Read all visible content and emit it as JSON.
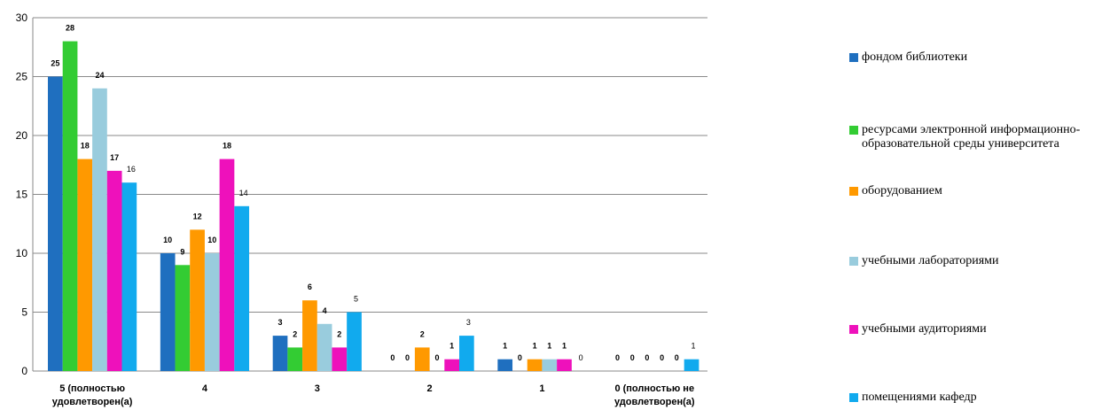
{
  "chart_data": {
    "type": "bar",
    "title": "",
    "xlabel": "",
    "ylabel": "",
    "ylim": [
      0,
      30
    ],
    "yticks": [
      0,
      5,
      10,
      15,
      20,
      25,
      30
    ],
    "grid": true,
    "legend_position": "right",
    "categories": [
      [
        "5 (полностью",
        "удовлетворен(а)"
      ],
      [
        "4"
      ],
      [
        "3"
      ],
      [
        "2"
      ],
      [
        "1"
      ],
      [
        "0 (полностью не",
        "удовлетворен(а)"
      ]
    ],
    "series": [
      {
        "name": "фондом библиотеки",
        "color": "#1f6fbf",
        "values": [
          25,
          10,
          3,
          0,
          1,
          0
        ]
      },
      {
        "name": "ресурсами электронной информационно-образовательной среды университета",
        "color": "#33cc33",
        "values": [
          28,
          9,
          2,
          0,
          0,
          0
        ]
      },
      {
        "name": "оборудованием",
        "color": "#ff9900",
        "values": [
          18,
          12,
          6,
          2,
          1,
          0
        ]
      },
      {
        "name": "учебными лабораториями",
        "color": "#99ccdd",
        "values": [
          24,
          10,
          4,
          0,
          1,
          0
        ]
      },
      {
        "name": "учебными аудиториями",
        "color": "#ee11bb",
        "values": [
          17,
          18,
          2,
          1,
          1,
          0
        ]
      },
      {
        "name": "помещениями кафедр",
        "color": "#11aaee",
        "values": [
          16,
          14,
          5,
          3,
          0,
          1
        ]
      }
    ],
    "label_bold": [
      [
        true,
        true,
        true,
        true,
        true,
        false
      ],
      [
        true,
        true,
        true,
        true,
        true,
        false
      ],
      [
        true,
        true,
        true,
        true,
        true,
        false
      ],
      [
        true,
        true,
        true,
        true,
        true,
        false
      ],
      [
        true,
        true,
        true,
        true,
        true,
        false
      ],
      [
        true,
        true,
        true,
        true,
        true,
        false
      ]
    ]
  }
}
